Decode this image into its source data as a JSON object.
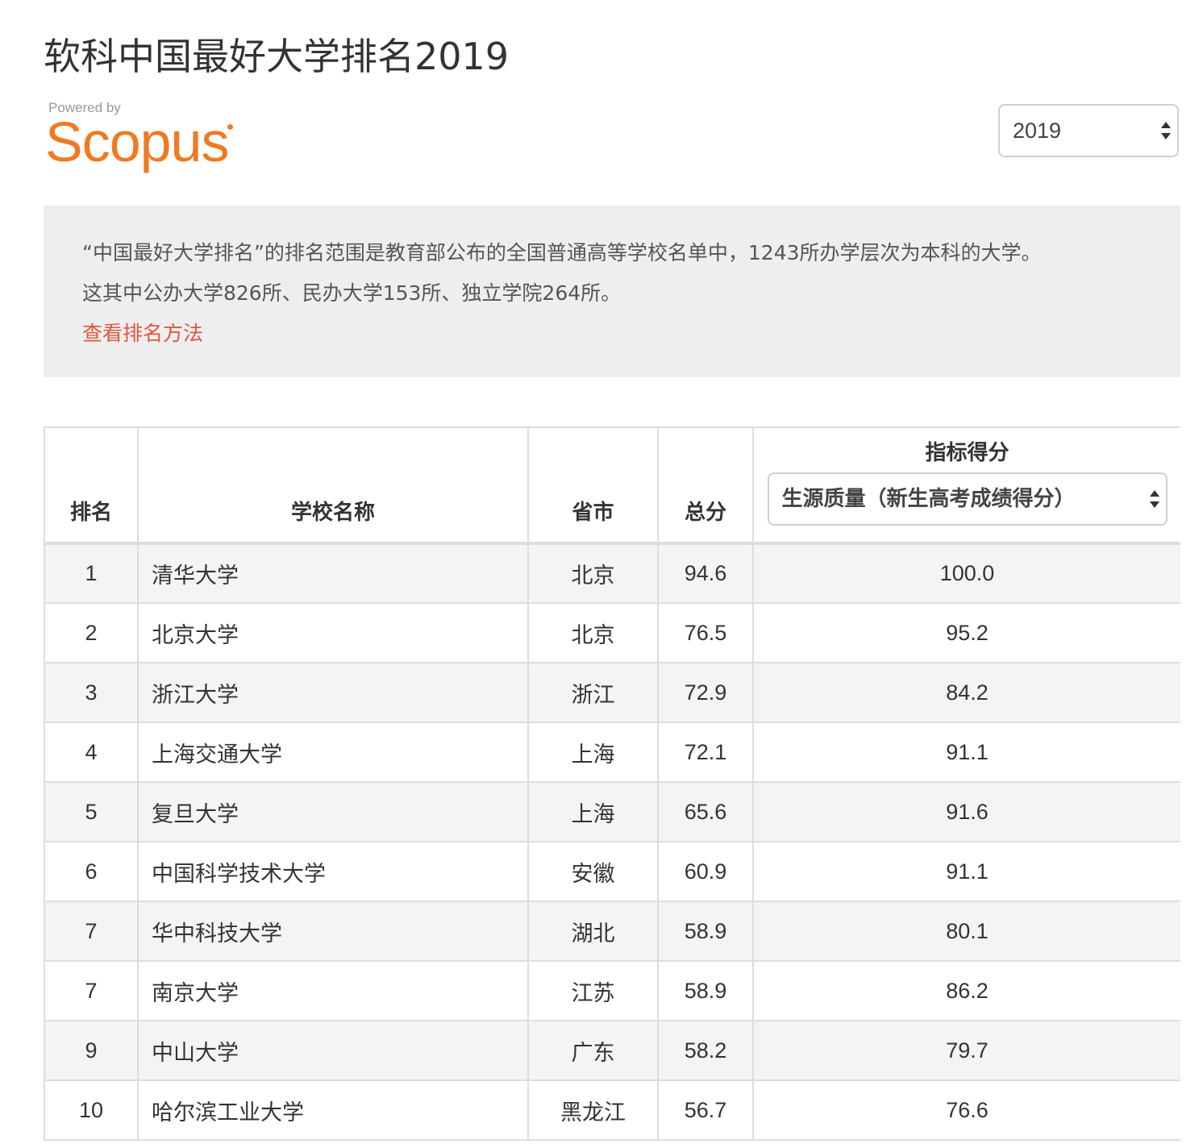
{
  "page": {
    "title": "软科中国最好大学排名2019"
  },
  "logo": {
    "powered_by": "Powered by",
    "name": "Scopus"
  },
  "year_select": {
    "value": "2019"
  },
  "intro": {
    "line1": "“中国最好大学排名”的排名范围是教育部公布的全国普通高等学校名单中，1243所办学层次为本科的大学。",
    "line2": "这其中公办大学826所、民办大学153所、独立学院264所。",
    "link": "查看排名方法"
  },
  "colors": {
    "link": "#e0573e",
    "logo": "#f07a22",
    "intro_bg": "#eeeeee",
    "stripe": "#f4f4f4"
  },
  "table": {
    "headers": {
      "rank": "排名",
      "name": "学校名称",
      "province": "省市",
      "total": "总分",
      "indicator_title": "指标得分",
      "indicator_select": "生源质量（新生高考成绩得分）"
    },
    "rows": [
      {
        "rank": "1",
        "name": "清华大学",
        "province": "北京",
        "total": "94.6",
        "score": "100.0"
      },
      {
        "rank": "2",
        "name": "北京大学",
        "province": "北京",
        "total": "76.5",
        "score": "95.2"
      },
      {
        "rank": "3",
        "name": "浙江大学",
        "province": "浙江",
        "total": "72.9",
        "score": "84.2"
      },
      {
        "rank": "4",
        "name": "上海交通大学",
        "province": "上海",
        "total": "72.1",
        "score": "91.1"
      },
      {
        "rank": "5",
        "name": "复旦大学",
        "province": "上海",
        "total": "65.6",
        "score": "91.6"
      },
      {
        "rank": "6",
        "name": "中国科学技术大学",
        "province": "安徽",
        "total": "60.9",
        "score": "91.1"
      },
      {
        "rank": "7",
        "name": "华中科技大学",
        "province": "湖北",
        "total": "58.9",
        "score": "80.1"
      },
      {
        "rank": "7",
        "name": "南京大学",
        "province": "江苏",
        "total": "58.9",
        "score": "86.2"
      },
      {
        "rank": "9",
        "name": "中山大学",
        "province": "广东",
        "total": "58.2",
        "score": "79.7"
      },
      {
        "rank": "10",
        "name": "哈尔滨工业大学",
        "province": "黑龙江",
        "total": "56.7",
        "score": "76.6"
      }
    ]
  }
}
